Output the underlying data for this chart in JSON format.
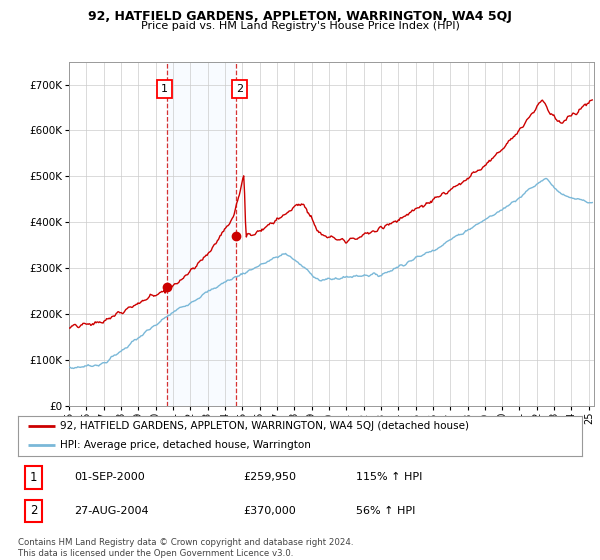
{
  "title1": "92, HATFIELD GARDENS, APPLETON, WARRINGTON, WA4 5QJ",
  "title2": "Price paid vs. HM Land Registry's House Price Index (HPI)",
  "ylim": [
    0,
    750000
  ],
  "yticks": [
    0,
    100000,
    200000,
    300000,
    400000,
    500000,
    600000,
    700000
  ],
  "ytick_labels": [
    "£0",
    "£100K",
    "£200K",
    "£300K",
    "£400K",
    "£500K",
    "£600K",
    "£700K"
  ],
  "sale1_year": 2000.67,
  "sale1_price": 259950,
  "sale1_label": "1",
  "sale2_year": 2004.65,
  "sale2_price": 370000,
  "sale2_label": "2",
  "legend_line1": "92, HATFIELD GARDENS, APPLETON, WARRINGTON, WA4 5QJ (detached house)",
  "legend_line2": "HPI: Average price, detached house, Warrington",
  "table_row1": [
    "1",
    "01-SEP-2000",
    "£259,950",
    "115% ↑ HPI"
  ],
  "table_row2": [
    "2",
    "27-AUG-2004",
    "£370,000",
    "56% ↑ HPI"
  ],
  "footer1": "Contains HM Land Registry data © Crown copyright and database right 2024.",
  "footer2": "This data is licensed under the Open Government Licence v3.0.",
  "background_color": "#ffffff",
  "grid_color": "#cccccc",
  "hpi_color": "#7ab8d8",
  "property_color": "#cc0000",
  "vline_color": "#cc0000",
  "shade_color": "#ddeeff",
  "xlim_start": 1995,
  "xlim_end": 2025.3
}
